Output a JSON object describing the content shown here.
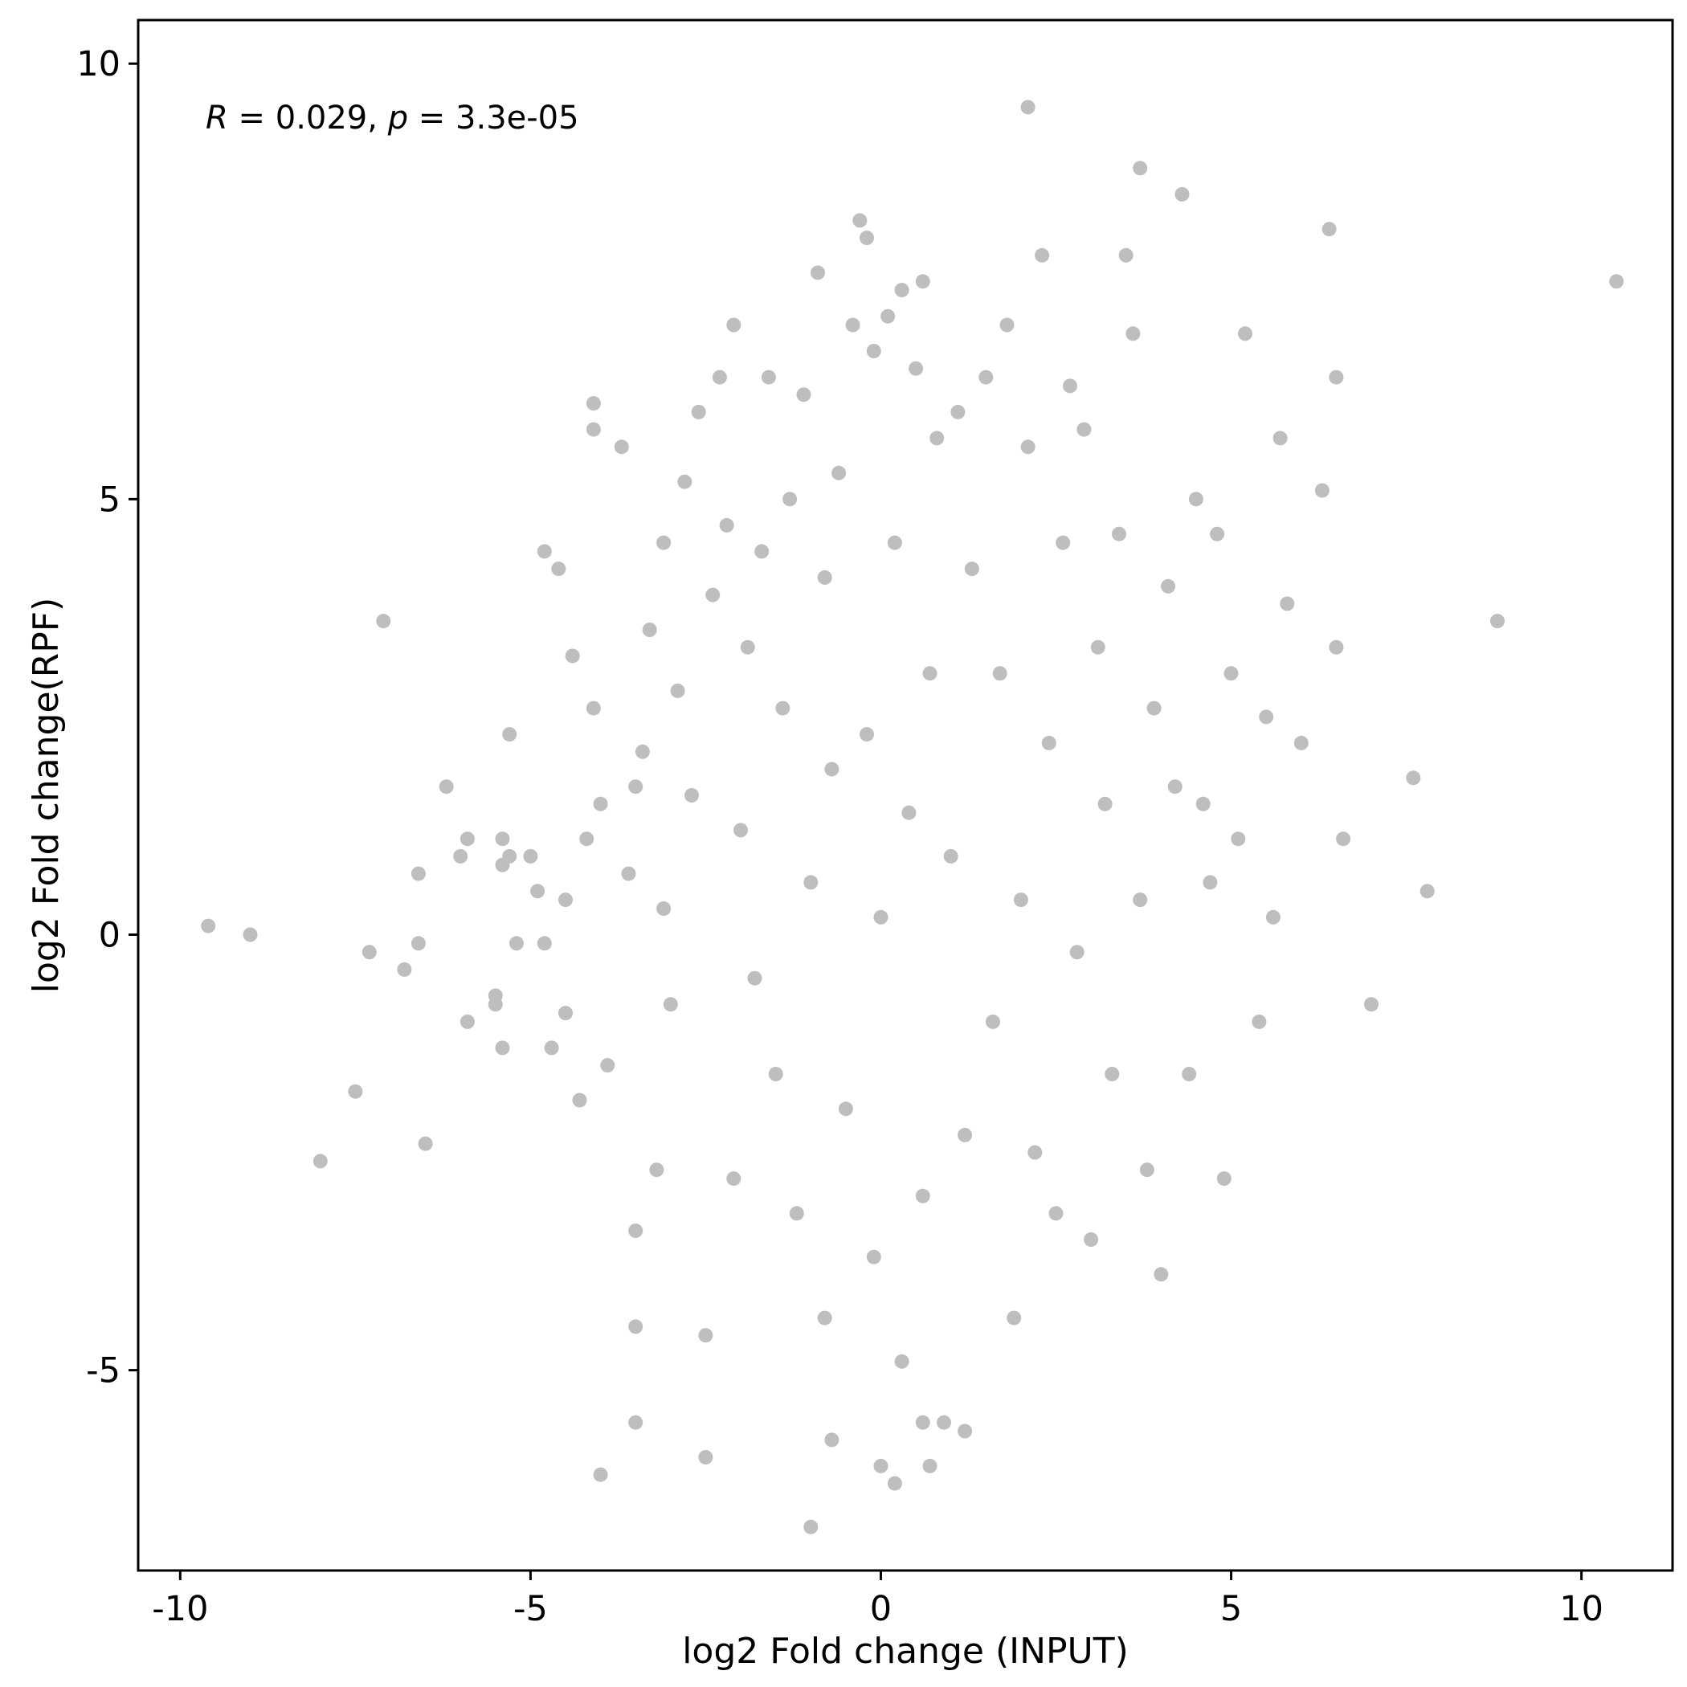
{
  "chart_data": {
    "type": "scatter",
    "title": "",
    "xlabel": "log2 Fold change (INPUT)",
    "ylabel": "log2 Fold change(RPF)",
    "xlim": [
      -10.6,
      11.3
    ],
    "ylim": [
      -7.3,
      10.5
    ],
    "xticks": [
      -10,
      -5,
      0,
      5,
      10
    ],
    "yticks": [
      -5,
      0,
      5,
      10
    ],
    "xtick_labels": [
      "-10",
      "-5",
      "0",
      "5",
      "10"
    ],
    "ytick_labels": [
      "-5",
      "0",
      "5",
      "10"
    ],
    "annotation": {
      "r_symbol": "R",
      "r_value": " = 0.029, ",
      "p_symbol": "p",
      "p_value": " = 3.3e-05"
    },
    "grid": false,
    "legend": "none",
    "point_color": "#BEBEBE",
    "series": [
      {
        "values": [
          [
            -9.6,
            0.1
          ],
          [
            -9.0,
            0.0
          ],
          [
            -7.3,
            -0.2
          ],
          [
            -7.1,
            3.6
          ],
          [
            -6.8,
            -0.4
          ],
          [
            -6.6,
            -0.1
          ],
          [
            -6.6,
            0.7
          ],
          [
            -6.2,
            1.7
          ],
          [
            -7.5,
            -1.8
          ],
          [
            -8.0,
            -2.6
          ],
          [
            -6.5,
            -2.4
          ],
          [
            -6.0,
            0.9
          ],
          [
            -5.9,
            1.1
          ],
          [
            -5.9,
            -1.0
          ],
          [
            -5.5,
            -0.7
          ],
          [
            -5.5,
            -0.8
          ],
          [
            -5.4,
            1.1
          ],
          [
            -5.4,
            0.8
          ],
          [
            -5.4,
            -1.3
          ],
          [
            -5.3,
            0.9
          ],
          [
            -5.2,
            -0.1
          ],
          [
            -5.3,
            2.3
          ],
          [
            -5.0,
            0.9
          ],
          [
            -4.9,
            0.5
          ],
          [
            -4.8,
            -0.1
          ],
          [
            -4.8,
            4.4
          ],
          [
            -4.7,
            -1.3
          ],
          [
            -4.6,
            4.2
          ],
          [
            -4.5,
            0.4
          ],
          [
            -4.5,
            -0.9
          ],
          [
            -4.4,
            3.2
          ],
          [
            -4.3,
            -1.9
          ],
          [
            -4.2,
            1.1
          ],
          [
            -4.1,
            2.6
          ],
          [
            -4.1,
            5.8
          ],
          [
            -4.1,
            6.1
          ],
          [
            -4.0,
            1.5
          ],
          [
            -3.9,
            -1.5
          ],
          [
            -3.7,
            5.6
          ],
          [
            -3.6,
            0.7
          ],
          [
            -3.5,
            1.7
          ],
          [
            -3.5,
            -3.4
          ],
          [
            -3.5,
            -4.5
          ],
          [
            -3.4,
            2.1
          ],
          [
            -3.3,
            3.5
          ],
          [
            -3.2,
            -2.7
          ],
          [
            -3.1,
            4.5
          ],
          [
            -3.1,
            0.3
          ],
          [
            -3.0,
            -0.8
          ],
          [
            -2.9,
            2.8
          ],
          [
            -2.8,
            5.2
          ],
          [
            -2.7,
            1.6
          ],
          [
            -2.6,
            6.0
          ],
          [
            -2.5,
            -4.6
          ],
          [
            -2.4,
            3.9
          ],
          [
            -2.3,
            6.4
          ],
          [
            -2.2,
            4.7
          ],
          [
            -2.1,
            7.0
          ],
          [
            -2.1,
            -2.8
          ],
          [
            -2.0,
            1.2
          ],
          [
            -1.9,
            3.3
          ],
          [
            -1.8,
            -0.5
          ],
          [
            -1.7,
            4.4
          ],
          [
            -1.6,
            6.4
          ],
          [
            -1.5,
            -1.6
          ],
          [
            -1.4,
            2.6
          ],
          [
            -1.3,
            5.0
          ],
          [
            -1.2,
            -3.2
          ],
          [
            -1.1,
            6.2
          ],
          [
            -1.0,
            0.6
          ],
          [
            -0.9,
            7.6
          ],
          [
            -0.8,
            4.1
          ],
          [
            -0.8,
            -4.4
          ],
          [
            -0.7,
            1.9
          ],
          [
            -0.6,
            5.3
          ],
          [
            -0.5,
            -2.0
          ],
          [
            -0.4,
            7.0
          ],
          [
            -0.3,
            8.2
          ],
          [
            -0.2,
            2.3
          ],
          [
            -0.2,
            8.0
          ],
          [
            -0.1,
            -3.7
          ],
          [
            -0.1,
            6.7
          ],
          [
            0.0,
            0.2
          ],
          [
            0.1,
            7.1
          ],
          [
            0.2,
            4.5
          ],
          [
            0.3,
            -4.9
          ],
          [
            0.3,
            7.4
          ],
          [
            0.4,
            1.4
          ],
          [
            0.5,
            6.5
          ],
          [
            0.6,
            -3.0
          ],
          [
            0.6,
            7.5
          ],
          [
            0.7,
            3.0
          ],
          [
            0.8,
            5.7
          ],
          [
            0.9,
            -5.6
          ],
          [
            1.0,
            0.9
          ],
          [
            1.1,
            6.0
          ],
          [
            1.2,
            -2.3
          ],
          [
            1.3,
            4.2
          ],
          [
            1.5,
            6.4
          ],
          [
            1.6,
            -1.0
          ],
          [
            1.7,
            3.0
          ],
          [
            1.8,
            7.0
          ],
          [
            1.9,
            -4.4
          ],
          [
            2.0,
            0.4
          ],
          [
            2.1,
            5.6
          ],
          [
            2.2,
            -2.5
          ],
          [
            2.3,
            7.8
          ],
          [
            2.4,
            2.2
          ],
          [
            2.5,
            -3.2
          ],
          [
            2.6,
            4.5
          ],
          [
            2.7,
            6.3
          ],
          [
            2.8,
            -0.2
          ],
          [
            2.9,
            5.8
          ],
          [
            3.0,
            -3.5
          ],
          [
            3.1,
            3.3
          ],
          [
            3.2,
            1.5
          ],
          [
            3.3,
            -1.6
          ],
          [
            3.4,
            4.6
          ],
          [
            3.5,
            7.8
          ],
          [
            3.6,
            6.9
          ],
          [
            3.7,
            0.4
          ],
          [
            3.7,
            8.8
          ],
          [
            3.8,
            -2.7
          ],
          [
            3.9,
            2.6
          ],
          [
            4.0,
            -3.9
          ],
          [
            4.1,
            4.0
          ],
          [
            4.2,
            1.7
          ],
          [
            4.3,
            8.5
          ],
          [
            4.4,
            -1.6
          ],
          [
            4.5,
            5.0
          ],
          [
            4.6,
            1.5
          ],
          [
            4.7,
            0.6
          ],
          [
            4.8,
            4.6
          ],
          [
            4.9,
            -2.8
          ],
          [
            5.0,
            3.0
          ],
          [
            5.1,
            1.1
          ],
          [
            5.2,
            6.9
          ],
          [
            5.4,
            -1.0
          ],
          [
            5.5,
            2.5
          ],
          [
            5.6,
            0.2
          ],
          [
            5.7,
            5.7
          ],
          [
            5.8,
            3.8
          ],
          [
            6.0,
            2.2
          ],
          [
            6.3,
            5.1
          ],
          [
            6.4,
            8.1
          ],
          [
            6.5,
            6.4
          ],
          [
            6.5,
            3.3
          ],
          [
            6.6,
            1.1
          ],
          [
            7.0,
            -0.8
          ],
          [
            7.6,
            1.8
          ],
          [
            7.8,
            0.5
          ],
          [
            8.8,
            3.6
          ],
          [
            10.5,
            7.5
          ],
          [
            -4.0,
            -6.2
          ],
          [
            -2.5,
            -6.0
          ],
          [
            -1.0,
            -6.8
          ],
          [
            0.0,
            -6.1
          ],
          [
            0.2,
            -6.3
          ],
          [
            0.7,
            -6.1
          ],
          [
            1.2,
            -5.7
          ],
          [
            -3.5,
            -5.6
          ],
          [
            -0.7,
            -5.8
          ],
          [
            0.6,
            -5.6
          ],
          [
            2.1,
            9.5
          ]
        ]
      }
    ]
  }
}
